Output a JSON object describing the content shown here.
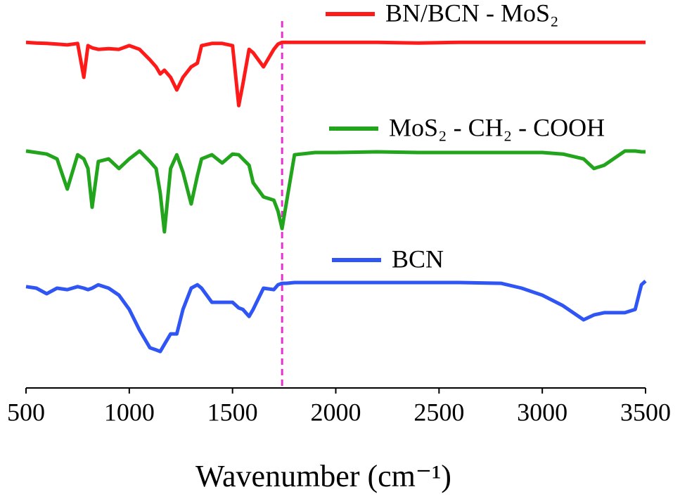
{
  "chart_data": {
    "type": "line",
    "x_label": "Wavenumber (cm⁻¹)",
    "x": [
      500,
      550,
      600,
      650,
      700,
      750,
      780,
      800,
      820,
      850,
      900,
      950,
      1000,
      1050,
      1100,
      1130,
      1150,
      1170,
      1200,
      1230,
      1260,
      1300,
      1330,
      1350,
      1400,
      1450,
      1500,
      1530,
      1550,
      1580,
      1600,
      1650,
      1700,
      1720,
      1740,
      1760,
      1800,
      1900,
      2000,
      2200,
      2400,
      2600,
      2800,
      2900,
      3000,
      3100,
      3200,
      3250,
      3300,
      3400,
      3450,
      3480,
      3500
    ],
    "series": [
      {
        "name": "BN/BCN - MoS₂",
        "color": "#ff1a1a",
        "values": [
          92.8,
          92.6,
          92.5,
          92.3,
          92.1,
          92.5,
          83.4,
          91.9,
          91.3,
          90.9,
          91.1,
          90.9,
          91.9,
          90.9,
          88.1,
          86.2,
          84.3,
          85.3,
          83.4,
          80.0,
          83.4,
          86.2,
          87.2,
          91.9,
          92.5,
          92.5,
          91.9,
          75.8,
          81.5,
          90.9,
          90.0,
          86.2,
          90.9,
          92.3,
          92.8,
          92.8,
          92.8,
          92.8,
          92.8,
          92.8,
          92.6,
          92.8,
          92.8,
          92.8,
          92.8,
          92.8,
          92.8,
          92.8,
          92.8,
          92.8,
          92.8,
          92.8,
          92.8
        ]
      },
      {
        "name": "MoS₂ - CH₂ - COOH",
        "color": "#22a51c",
        "values": [
          63.6,
          63.2,
          62.8,
          61.5,
          53.4,
          62.6,
          61.5,
          58.9,
          48.5,
          60.8,
          61.5,
          58.9,
          61.5,
          63.6,
          60.8,
          58.9,
          52.3,
          41.9,
          58.9,
          62.6,
          57.9,
          49.4,
          57.0,
          61.5,
          62.6,
          60.4,
          62.8,
          62.6,
          61.5,
          59.8,
          55.1,
          51.3,
          50.4,
          47.5,
          42.8,
          49.4,
          62.6,
          63.2,
          63.2,
          63.4,
          63.2,
          63.2,
          63.2,
          63.2,
          63.2,
          62.8,
          61.5,
          58.9,
          59.8,
          63.6,
          63.6,
          63.4,
          63.4
        ]
      },
      {
        "name": "BCN",
        "color": "#2f56f5",
        "values": [
          27.2,
          26.8,
          25.3,
          26.8,
          26.4,
          27.2,
          26.8,
          26.4,
          26.8,
          27.7,
          26.8,
          24.9,
          21.1,
          15.5,
          10.8,
          10.2,
          9.8,
          11.7,
          14.5,
          14.5,
          21.1,
          26.8,
          27.7,
          26.8,
          23.0,
          23.0,
          23.0,
          21.5,
          21.1,
          19.2,
          21.1,
          26.8,
          26.4,
          27.7,
          28.1,
          28.1,
          28.3,
          28.3,
          28.3,
          28.3,
          28.3,
          28.3,
          28.1,
          26.8,
          24.9,
          22.1,
          18.3,
          19.6,
          20.2,
          20.2,
          21.1,
          27.7,
          28.7
        ]
      }
    ],
    "xlim": [
      500,
      3500
    ],
    "xticks": [
      500,
      1000,
      1500,
      2000,
      2500,
      3000,
      3500
    ],
    "ylim": [
      0,
      100
    ],
    "vline": 1740,
    "vline_color": "#e830d0"
  }
}
